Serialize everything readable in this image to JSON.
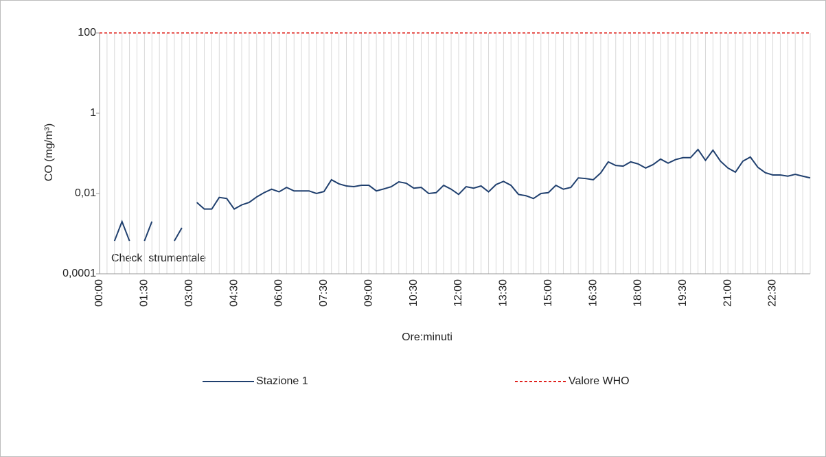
{
  "chart_data": {
    "type": "line",
    "y_label": "CO (mg/m³)",
    "x_label": "Ore:minuti",
    "annotation": "Check  strumentale",
    "log_scale": true,
    "grid": true,
    "legend": "bottom",
    "categories": [
      "00:00",
      null,
      null,
      null,
      null,
      null,
      "01:30",
      null,
      null,
      null,
      null,
      null,
      "03:00",
      null,
      null,
      null,
      null,
      null,
      "04:30",
      null,
      null,
      null,
      null,
      null,
      "06:00",
      null,
      null,
      null,
      null,
      null,
      "07:30",
      null,
      null,
      null,
      null,
      null,
      "09:00",
      null,
      null,
      null,
      null,
      null,
      "10:30",
      null,
      null,
      null,
      null,
      null,
      "12:00",
      null,
      null,
      null,
      null,
      null,
      "13:30",
      null,
      null,
      null,
      null,
      null,
      "15:00",
      null,
      null,
      null,
      null,
      null,
      "16:30",
      null,
      null,
      null,
      null,
      null,
      "18:00",
      null,
      null,
      null,
      null,
      null,
      "19:30",
      null,
      null,
      null,
      null,
      null,
      "21:00",
      null,
      null,
      null,
      null,
      null,
      "22:30",
      null,
      null,
      null,
      null,
      null
    ],
    "ylim": [
      0.0001,
      100
    ],
    "yticks": [
      {
        "value": 0.0001,
        "label": "0,0001"
      },
      {
        "value": 0.01,
        "label": "0,01"
      },
      1,
      100
    ],
    "series": [
      {
        "name": "Stazione 1",
        "color": "#1f3f6e",
        "dash": false,
        "values": [
          null,
          null,
          0.00066,
          0.002,
          0.00066,
          null,
          0.00066,
          0.002,
          null,
          null,
          0.00066,
          0.0014,
          null,
          0.006,
          0.0041,
          0.0041,
          0.008,
          0.0075,
          0.0041,
          0.0052,
          0.006,
          0.0082,
          0.0105,
          0.0128,
          0.011,
          0.0142,
          0.0116,
          0.0116,
          0.0116,
          0.01,
          0.0112,
          0.022,
          0.0174,
          0.0154,
          0.0148,
          0.016,
          0.016,
          0.0116,
          0.013,
          0.0148,
          0.0195,
          0.018,
          0.0136,
          0.0142,
          0.01,
          0.0105,
          0.016,
          0.0128,
          0.0095,
          0.0148,
          0.0136,
          0.0154,
          0.011,
          0.0167,
          0.02,
          0.016,
          0.0095,
          0.0088,
          0.0075,
          0.01,
          0.0105,
          0.016,
          0.0128,
          0.0142,
          0.0245,
          0.0236,
          0.022,
          0.0326,
          0.0615,
          0.05,
          0.048,
          0.0615,
          0.0545,
          0.0432,
          0.0526,
          0.072,
          0.057,
          0.07,
          0.078,
          0.078,
          0.125,
          0.067,
          0.12,
          0.064,
          0.0432,
          0.034,
          0.064,
          0.081,
          0.045,
          0.033,
          0.029,
          0.029,
          0.027,
          0.03,
          0.027,
          0.0245
        ]
      },
      {
        "name": "Valore WHO",
        "color": "#e0201b",
        "dash": true,
        "values": [
          100,
          100,
          100,
          100,
          100,
          100,
          100,
          100,
          100,
          100,
          100,
          100,
          100,
          100,
          100,
          100,
          100,
          100,
          100,
          100,
          100,
          100,
          100,
          100,
          100,
          100,
          100,
          100,
          100,
          100,
          100,
          100,
          100,
          100,
          100,
          100,
          100,
          100,
          100,
          100,
          100,
          100,
          100,
          100,
          100,
          100,
          100,
          100,
          100,
          100,
          100,
          100,
          100,
          100,
          100,
          100,
          100,
          100,
          100,
          100,
          100,
          100,
          100,
          100,
          100,
          100,
          100,
          100,
          100,
          100,
          100,
          100,
          100,
          100,
          100,
          100,
          100,
          100,
          100,
          100,
          100,
          100,
          100,
          100,
          100,
          100,
          100,
          100,
          100,
          100,
          100,
          100,
          100,
          100,
          100,
          100
        ]
      }
    ]
  }
}
